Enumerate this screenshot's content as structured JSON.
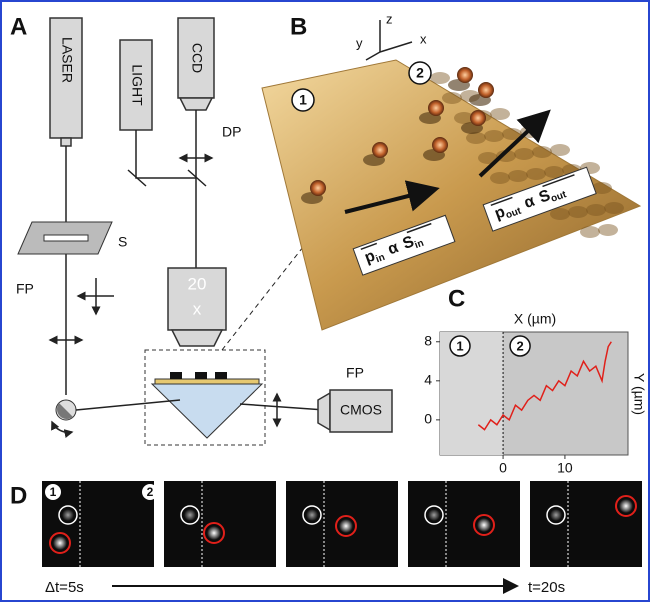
{
  "panels": {
    "a": {
      "label": "A",
      "laser": "LASER",
      "light": "LIGHT",
      "ccd": "CCD",
      "dp": "DP",
      "s": "S",
      "fp_left": "FP",
      "objective_mag": "20",
      "objective_x": "x",
      "fp_right": "FP",
      "cmos": "CMOS"
    },
    "b": {
      "label": "B",
      "axis_x": "x",
      "axis_y": "y",
      "axis_z": "z",
      "region_1": "1",
      "region_2": "2",
      "label_in": {
        "p": "p",
        "p_sub": "in",
        "alpha": "α",
        "s": "S",
        "s_sub": "in"
      },
      "label_out": {
        "p": "p",
        "p_sub": "out",
        "alpha": "α",
        "s": "S",
        "s_sub": "out"
      }
    },
    "c": {
      "label": "C"
    },
    "d": {
      "label": "D",
      "region_1": "1",
      "region_2": "2",
      "start": "Δt=5s",
      "end": "t=20s"
    }
  },
  "chart_data": {
    "type": "line",
    "x_label": "X (µm)",
    "y_label": "Y (µm)",
    "annotations": [
      "1",
      "2"
    ],
    "x": [
      -4,
      -3,
      -2,
      -1,
      0,
      1,
      2,
      3,
      4,
      5,
      6,
      7,
      8,
      9,
      10,
      11,
      12,
      13,
      14,
      15,
      16,
      16.5,
      17,
      17.5
    ],
    "values": [
      -0.5,
      -1,
      0,
      -0.5,
      0.5,
      0,
      1.5,
      1,
      2,
      2.5,
      2,
      3.5,
      3,
      4,
      3.5,
      5,
      4.5,
      6,
      5,
      5.5,
      4,
      6,
      7.5,
      8
    ],
    "color": "#e0201a",
    "xlim": [
      -10.2,
      20.2
    ],
    "ylim": [
      -3.6,
      9
    ],
    "xticks": [
      0,
      10
    ],
    "yticks": [
      0,
      4,
      8
    ]
  }
}
